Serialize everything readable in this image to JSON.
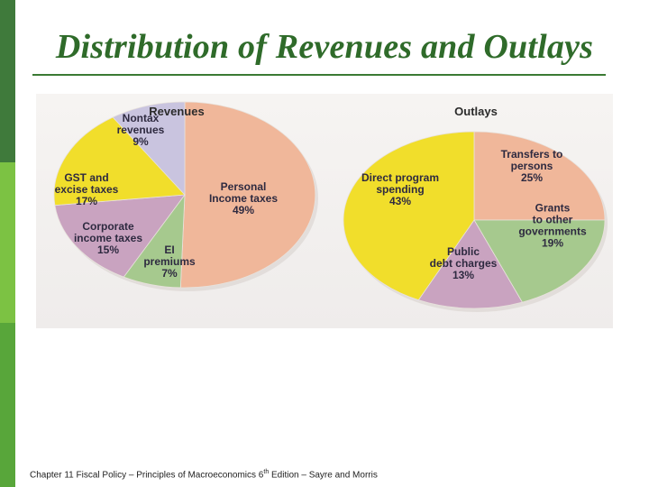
{
  "slide": {
    "title": "Distribution of Revenues and Outlays",
    "footer_pre": "Chapter 11 Fiscal Policy – Principles of Macroeconomics 6",
    "footer_sup": "th",
    "footer_post": " Edition – Sayre and Morris"
  },
  "chart_data": [
    {
      "type": "pie",
      "title": "Revenues",
      "slices": [
        {
          "lines": [
            "Personal",
            "Income taxes"
          ],
          "value": 49,
          "label": "49%",
          "color": "#f0b79a"
        },
        {
          "lines": [
            "EI",
            "premiums"
          ],
          "value": 7,
          "label": "7%",
          "color": "#a6c98e"
        },
        {
          "lines": [
            "Corporate",
            "income taxes"
          ],
          "value": 15,
          "label": "15%",
          "color": "#c9a3c0"
        },
        {
          "lines": [
            "GST and",
            "excise taxes"
          ],
          "value": 17,
          "label": "17%",
          "color": "#f1de2b"
        },
        {
          "lines": [
            "Nontax",
            "revenues"
          ],
          "value": 9,
          "label": "9%",
          "color": "#c9c4df"
        }
      ]
    },
    {
      "type": "pie",
      "title": "Outlays",
      "slices": [
        {
          "lines": [
            "Transfers to",
            "persons"
          ],
          "value": 25,
          "label": "25%",
          "color": "#f0b79a"
        },
        {
          "lines": [
            "Grants",
            "to other",
            "governments"
          ],
          "value": 19,
          "label": "19%",
          "color": "#a6c98e"
        },
        {
          "lines": [
            "Public",
            "debt charges"
          ],
          "value": 13,
          "label": "13%",
          "color": "#c9a3c0"
        },
        {
          "lines": [
            "Direct program",
            "spending"
          ],
          "value": 43,
          "label": "43%",
          "color": "#f1de2b"
        }
      ]
    }
  ]
}
